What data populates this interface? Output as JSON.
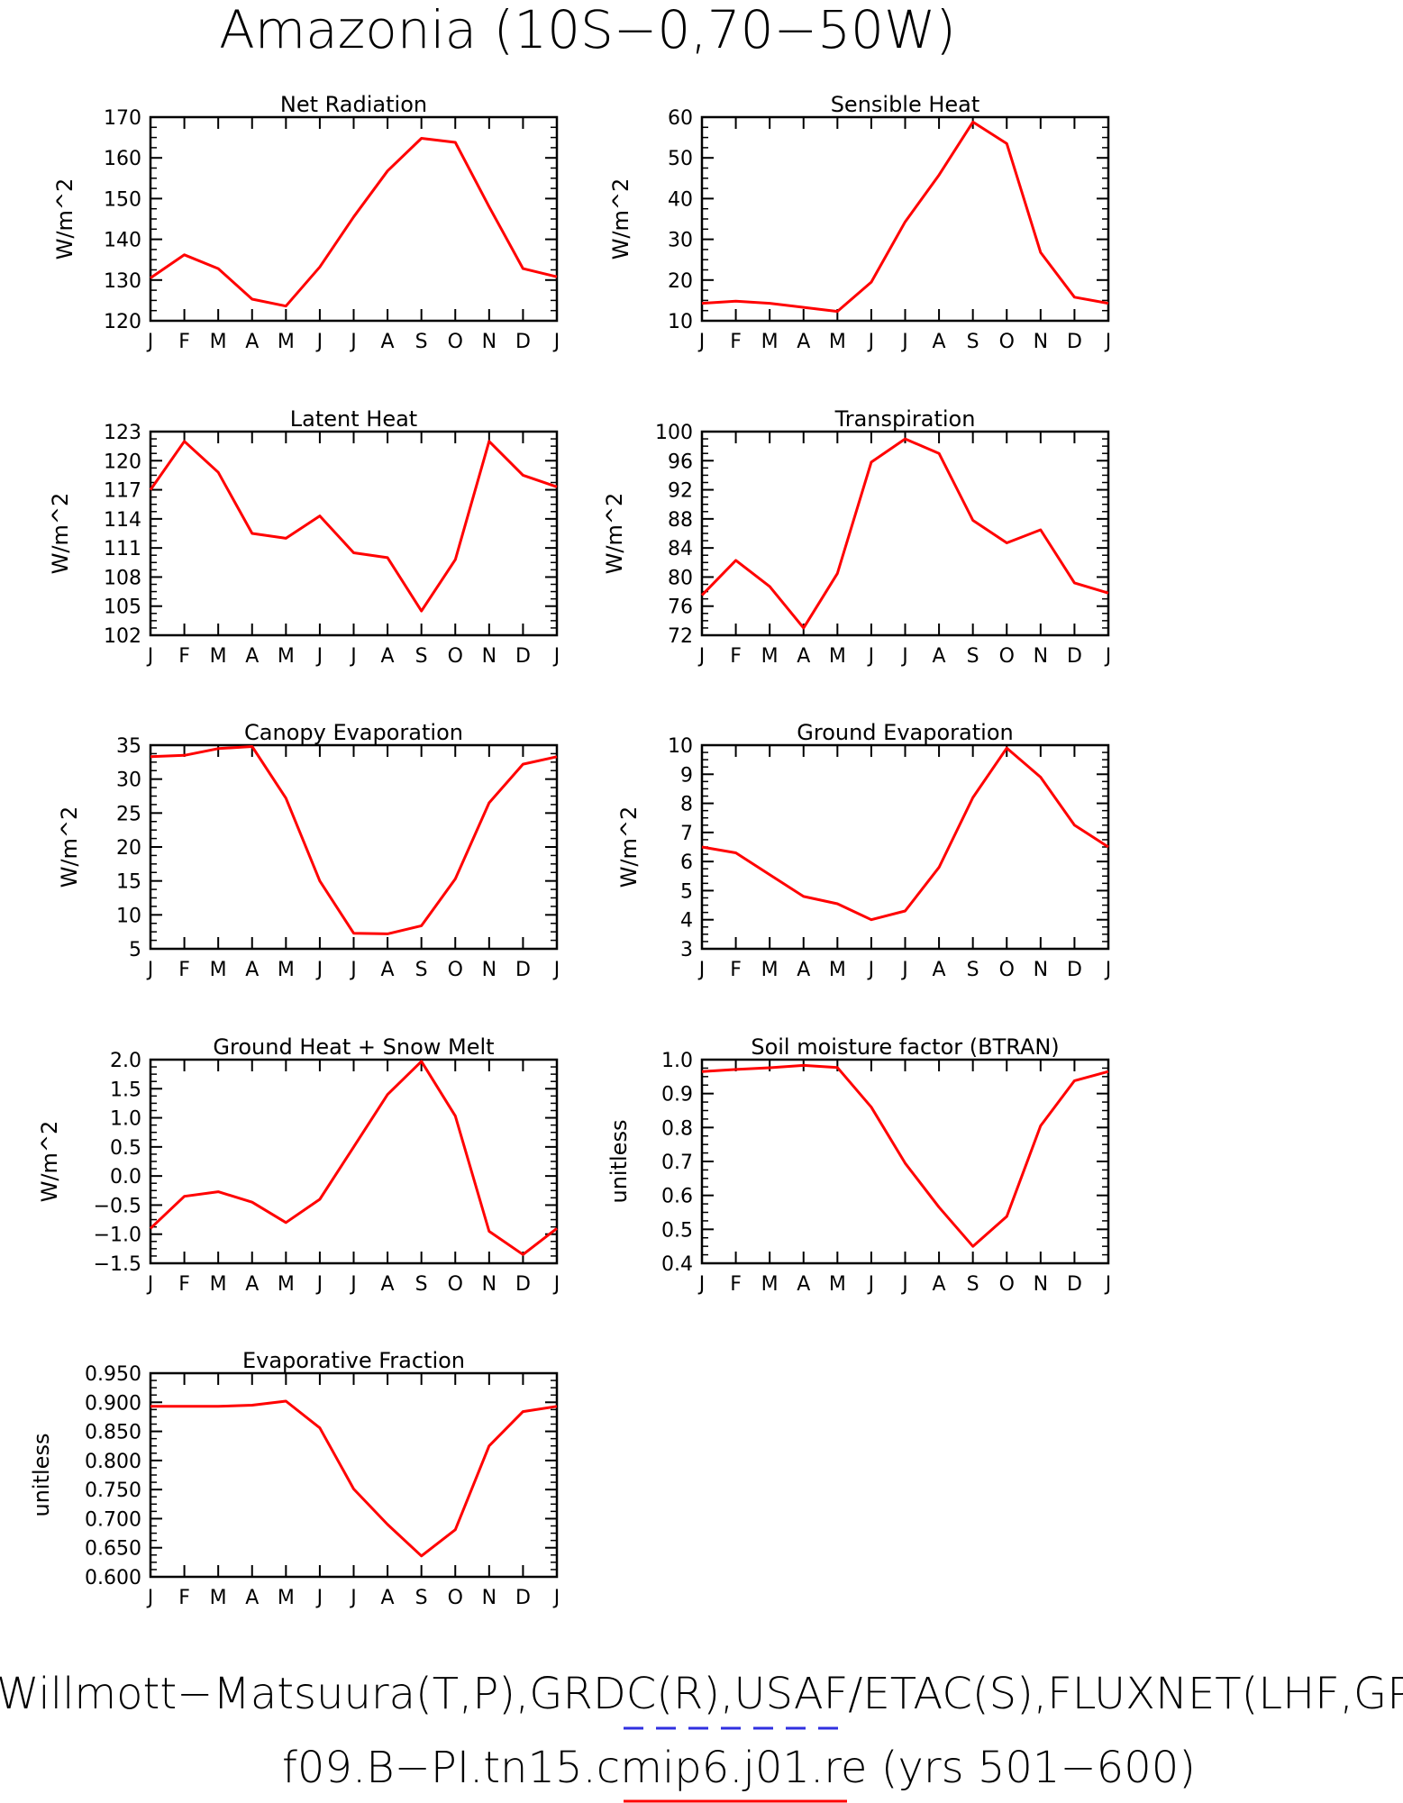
{
  "title": "Amazonia (10S−0,70−50W)",
  "footer": {
    "sources": "Willmott−Matsuura(T,P),GRDC(R),USAF/ETAC(S),FLUXNET(LHF,GP",
    "case": "f09.B−PI.tn15.cmip6.j01.re (yrs 501−600)",
    "colors": {
      "observations_line": "#3030e0",
      "case_line": "#ff0000"
    }
  },
  "months": [
    "J",
    "F",
    "M",
    "A",
    "M",
    "J",
    "J",
    "A",
    "S",
    "O",
    "N",
    "D",
    "J"
  ],
  "chart_data": [
    {
      "type": "line",
      "title": "Net Radiation",
      "ylabel": "W/m^2",
      "ylim": [
        120,
        170
      ],
      "yticks": [
        "120",
        "130",
        "140",
        "150",
        "160",
        "170"
      ],
      "categories": [
        "J",
        "F",
        "M",
        "A",
        "M",
        "J",
        "J",
        "A",
        "S",
        "O",
        "N",
        "D",
        "J"
      ],
      "series": [
        {
          "color": "#ff0000",
          "values": [
            130.5,
            136.2,
            132.8,
            125.3,
            123.6,
            133.2,
            145.5,
            156.8,
            164.8,
            163.8,
            148.0,
            132.8,
            130.8
          ]
        }
      ]
    },
    {
      "type": "line",
      "title": "Sensible Heat",
      "ylabel": "W/m^2",
      "ylim": [
        10,
        60
      ],
      "yticks": [
        "10",
        "20",
        "30",
        "40",
        "50",
        "60"
      ],
      "categories": [
        "J",
        "F",
        "M",
        "A",
        "M",
        "J",
        "J",
        "A",
        "S",
        "O",
        "N",
        "D",
        "J"
      ],
      "series": [
        {
          "color": "#ff0000",
          "values": [
            14.3,
            14.8,
            14.3,
            13.3,
            12.3,
            19.5,
            34.3,
            45.8,
            58.8,
            53.5,
            26.8,
            15.8,
            14.3
          ]
        }
      ]
    },
    {
      "type": "line",
      "title": "Latent Heat",
      "ylabel": "W/m^2",
      "ylim": [
        102,
        123
      ],
      "yticks": [
        "102",
        "105",
        "108",
        "111",
        "114",
        "117",
        "120",
        "123"
      ],
      "categories": [
        "J",
        "F",
        "M",
        "A",
        "M",
        "J",
        "J",
        "A",
        "S",
        "O",
        "N",
        "D",
        "J"
      ],
      "series": [
        {
          "color": "#ff0000",
          "values": [
            117.0,
            122.0,
            118.8,
            112.5,
            112.0,
            114.3,
            110.5,
            110.0,
            104.5,
            109.8,
            122.0,
            118.5,
            117.3
          ]
        }
      ]
    },
    {
      "type": "line",
      "title": "Transpiration",
      "ylabel": "W/m^2",
      "ylim": [
        72,
        100
      ],
      "yticks": [
        "72",
        "76",
        "80",
        "84",
        "88",
        "92",
        "96",
        "100"
      ],
      "categories": [
        "J",
        "F",
        "M",
        "A",
        "M",
        "J",
        "J",
        "A",
        "S",
        "O",
        "N",
        "D",
        "J"
      ],
      "series": [
        {
          "color": "#ff0000",
          "values": [
            77.5,
            82.3,
            78.7,
            73.0,
            80.5,
            95.8,
            99.0,
            97.0,
            87.8,
            84.7,
            86.5,
            79.2,
            77.8
          ]
        }
      ]
    },
    {
      "type": "line",
      "title": "Canopy Evaporation",
      "ylabel": "W/m^2",
      "ylim": [
        5,
        35
      ],
      "yticks": [
        "5",
        "10",
        "15",
        "20",
        "25",
        "30",
        "35"
      ],
      "categories": [
        "J",
        "F",
        "M",
        "A",
        "M",
        "J",
        "J",
        "A",
        "S",
        "O",
        "N",
        "D",
        "J"
      ],
      "series": [
        {
          "color": "#ff0000",
          "values": [
            33.3,
            33.5,
            34.5,
            34.8,
            27.2,
            15.0,
            7.3,
            7.2,
            8.4,
            15.3,
            26.5,
            32.2,
            33.3
          ]
        }
      ]
    },
    {
      "type": "line",
      "title": "Ground Evaporation",
      "ylabel": "W/m^2",
      "ylim": [
        3,
        10
      ],
      "yticks": [
        "3",
        "4",
        "5",
        "6",
        "7",
        "8",
        "9",
        "10"
      ],
      "categories": [
        "J",
        "F",
        "M",
        "A",
        "M",
        "J",
        "J",
        "A",
        "S",
        "O",
        "N",
        "D",
        "J"
      ],
      "series": [
        {
          "color": "#ff0000",
          "values": [
            6.5,
            6.3,
            5.55,
            4.8,
            4.55,
            4.0,
            4.3,
            5.8,
            8.2,
            9.9,
            8.9,
            7.25,
            6.5
          ]
        }
      ]
    },
    {
      "type": "line",
      "title": "Ground Heat + Snow Melt",
      "ylabel": "W/m^2",
      "ylim": [
        -1.5,
        2.0
      ],
      "yticks": [
        "−1.5",
        "−1.0",
        "−0.5",
        "0.0",
        "0.5",
        "1.0",
        "1.5",
        "2.0"
      ],
      "categories": [
        "J",
        "F",
        "M",
        "A",
        "M",
        "J",
        "J",
        "A",
        "S",
        "O",
        "N",
        "D",
        "J"
      ],
      "series": [
        {
          "color": "#ff0000",
          "values": [
            -0.9,
            -0.35,
            -0.27,
            -0.45,
            -0.8,
            -0.4,
            0.5,
            1.4,
            1.97,
            1.03,
            -0.95,
            -1.35,
            -0.9
          ]
        }
      ]
    },
    {
      "type": "line",
      "title": "Soil moisture factor (BTRAN)",
      "ylabel": "unitless",
      "ylim": [
        0.4,
        1.0
      ],
      "yticks": [
        "0.4",
        "0.5",
        "0.6",
        "0.7",
        "0.8",
        "0.9",
        "1.0"
      ],
      "categories": [
        "J",
        "F",
        "M",
        "A",
        "M",
        "J",
        "J",
        "A",
        "S",
        "O",
        "N",
        "D",
        "J"
      ],
      "series": [
        {
          "color": "#ff0000",
          "values": [
            0.965,
            0.971,
            0.976,
            0.983,
            0.977,
            0.86,
            0.695,
            0.565,
            0.45,
            0.538,
            0.805,
            0.938,
            0.965
          ]
        }
      ]
    },
    {
      "type": "line",
      "title": "Evaporative Fraction",
      "ylabel": "unitless",
      "ylim": [
        0.6,
        0.95
      ],
      "yticks": [
        "0.600",
        "0.650",
        "0.700",
        "0.750",
        "0.800",
        "0.850",
        "0.900",
        "0.950"
      ],
      "categories": [
        "J",
        "F",
        "M",
        "A",
        "M",
        "J",
        "J",
        "A",
        "S",
        "O",
        "N",
        "D",
        "J"
      ],
      "series": [
        {
          "color": "#ff0000",
          "values": [
            0.893,
            0.893,
            0.893,
            0.895,
            0.902,
            0.856,
            0.751,
            0.69,
            0.636,
            0.681,
            0.825,
            0.884,
            0.893
          ]
        }
      ]
    }
  ]
}
